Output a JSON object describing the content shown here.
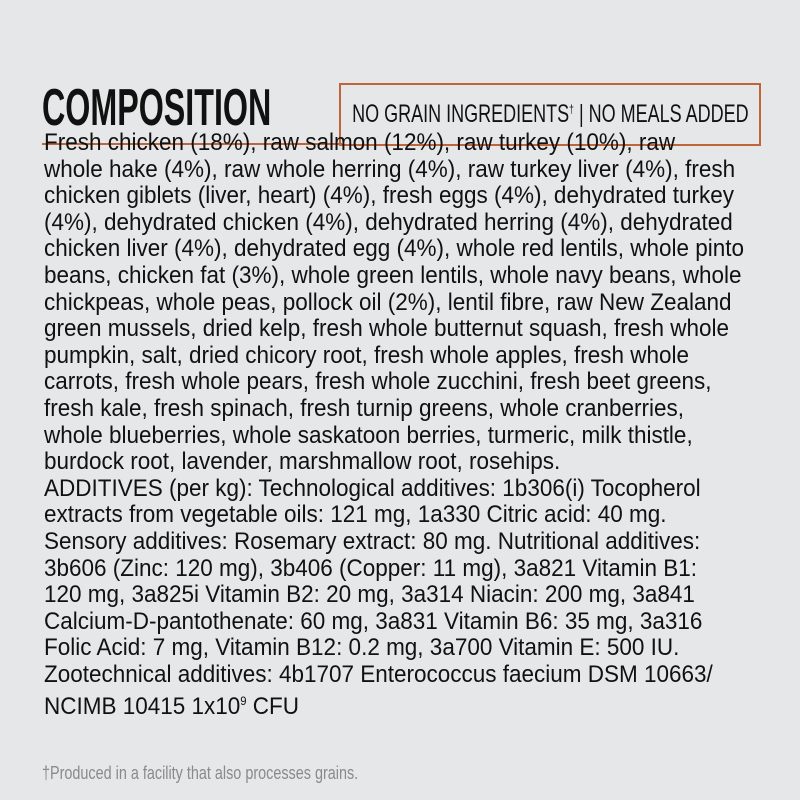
{
  "header": {
    "title": "COMPOSITION",
    "badge_text": "NO GRAIN INGREDIENTS",
    "badge_dagger": "†",
    "badge_rest": " | NO MEALS ADDED"
  },
  "colors": {
    "accent": "#c0643a",
    "background": "#e6e7e8"
  },
  "composition_lines": [
    "Fresh chicken (18%), raw salmon (12%), raw turkey (10%), raw",
    "whole hake (4%), raw whole herring (4%), raw turkey liver (4%), fresh",
    "chicken giblets (liver, heart) (4%), fresh eggs (4%), dehydrated turkey",
    "(4%), dehydrated chicken (4%), dehydrated herring (4%), dehydrated",
    "chicken liver (4%), dehydrated egg (4%), whole red lentils, whole pinto",
    "beans, chicken fat (3%), whole green lentils, whole navy beans, whole",
    "chickpeas, whole peas, pollock oil (2%), lentil fibre, raw New Zealand",
    "green mussels, dried kelp, fresh whole butternut squash, fresh whole",
    "pumpkin, salt, dried chicory root, fresh whole apples, fresh whole",
    "carrots, fresh whole pears, fresh whole zucchini, fresh beet greens,",
    "fresh kale, fresh spinach, fresh turnip greens, whole cranberries,",
    "whole blueberries, whole saskatoon berries, turmeric, milk thistle,",
    "burdock root, lavender, marshmallow root, rosehips.",
    "ADDITIVES (per kg): Technological additives: 1b306(i) Tocopherol",
    "extracts from vegetable oils: 121 mg, 1a330 Citric acid: 40 mg.",
    "Sensory additives: Rosemary extract: 80 mg. Nutritional additives:",
    "3b606 (Zinc: 120 mg), 3b406 (Copper: 11 mg), 3a821 Vitamin B1:",
    "120 mg, 3a825i Vitamin B2: 20 mg, 3a314 Niacin: 200 mg, 3a841",
    "Calcium-D-pantothenate: 60 mg, 3a831 Vitamin B6: 35 mg, 3a316",
    "Folic Acid: 7 mg, Vitamin B12: 0.2 mg, 3a700 Vitamin E: 500 IU.",
    "Zootechnical additives: 4b1707 Enterococcus faecium DSM 10663/"
  ],
  "last_line": {
    "text": "NCIMB 10415 1x10",
    "exponent": "9",
    "unit": " CFU"
  },
  "footnote": "†Produced in a facility that also processes grains."
}
